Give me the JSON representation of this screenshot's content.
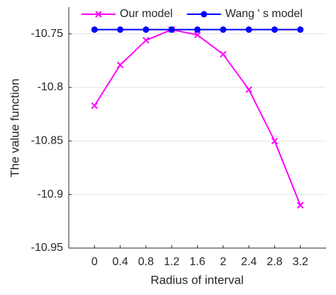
{
  "chart_data": {
    "type": "line",
    "x_label": "Radius of interval",
    "y_label": "The value function",
    "x": [
      0,
      0.4,
      0.8,
      1.2,
      1.6,
      2,
      2.4,
      2.8,
      3.2
    ],
    "series": [
      {
        "name": "Our model",
        "color": "#ff00ff",
        "marker": "x",
        "values": [
          -10.817,
          -10.779,
          -10.756,
          -10.746,
          -10.751,
          -10.769,
          -10.802,
          -10.85,
          -10.91
        ]
      },
      {
        "name": "Wang ' s model",
        "color": "#0000ff",
        "marker": "circle",
        "values": [
          -10.746,
          -10.746,
          -10.746,
          -10.746,
          -10.746,
          -10.746,
          -10.746,
          -10.746,
          -10.746
        ]
      }
    ],
    "xlim": [
      -0.4,
      3.6
    ],
    "xticks": [
      0,
      0.4,
      0.8,
      1.2,
      1.6,
      2,
      2.4,
      2.8,
      3.2
    ],
    "ylim": [
      -10.95,
      -10.725
    ],
    "yticks": [
      -10.95,
      -10.9,
      -10.85,
      -10.8,
      -10.75
    ],
    "grid": true,
    "legend": "top"
  }
}
